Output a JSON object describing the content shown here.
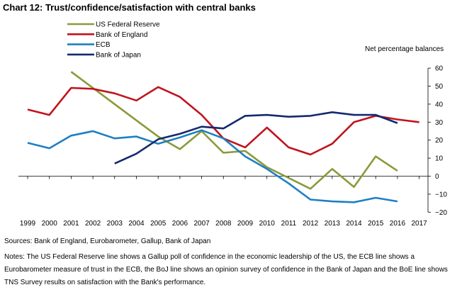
{
  "title": "Chart 12: Trust/confidence/satisfaction with central banks",
  "sources": "Sources:  Bank of England, Eurobarometer, Gallup, Bank of Japan",
  "notes": "Notes:  The US Federal Reserve line shows a Gallup poll of confidence in the economic leadership of the US, the ECB line shows a Eurobarometer measure of trust in the ECB, the BoJ line shows an opinion survey of confidence in the Bank of Japan and the BoE line shows TNS Survey results on satisfaction with the Bank's performance.",
  "chart_data": {
    "type": "line",
    "y_axis_title": "Net percentage balances",
    "ylim": [
      -20,
      60
    ],
    "yticks": [
      -20,
      -10,
      0,
      10,
      20,
      30,
      40,
      50,
      60
    ],
    "ytick_labels": [
      "−20",
      "−10",
      "0",
      "10",
      "20",
      "30",
      "40",
      "50",
      "60"
    ],
    "x": [
      1999,
      2000,
      2001,
      2002,
      2003,
      2004,
      2005,
      2006,
      2007,
      2008,
      2009,
      2010,
      2011,
      2012,
      2013,
      2014,
      2015,
      2016,
      2017
    ],
    "legend_position": "top-left",
    "grid": false,
    "series": [
      {
        "name": "US Federal Reserve",
        "color": "#8a9a3a",
        "values": [
          null,
          null,
          58,
          49,
          40,
          31,
          22,
          15,
          25,
          13,
          14,
          5,
          -1,
          -7,
          4,
          -6,
          11,
          3,
          null
        ]
      },
      {
        "name": "Bank of England",
        "color": "#c0141e",
        "values": [
          37,
          34,
          49,
          48.5,
          46,
          42,
          49.5,
          44,
          34,
          21,
          16,
          27,
          16,
          12,
          18,
          30,
          33.5,
          31.5,
          30
        ]
      },
      {
        "name": "ECB",
        "color": "#1f7fc4",
        "values": [
          18.5,
          15.5,
          22.5,
          25,
          21,
          22,
          18,
          21.5,
          25.5,
          21,
          11,
          4,
          -4,
          -13,
          -14,
          -14.5,
          -12,
          -14,
          null
        ]
      },
      {
        "name": "Bank of Japan",
        "color": "#142a6e",
        "values": [
          null,
          null,
          null,
          null,
          7,
          12.5,
          20.5,
          23.5,
          27.5,
          26.5,
          33.5,
          34,
          33,
          33.5,
          35.5,
          34,
          34,
          29.5,
          null
        ]
      }
    ]
  }
}
